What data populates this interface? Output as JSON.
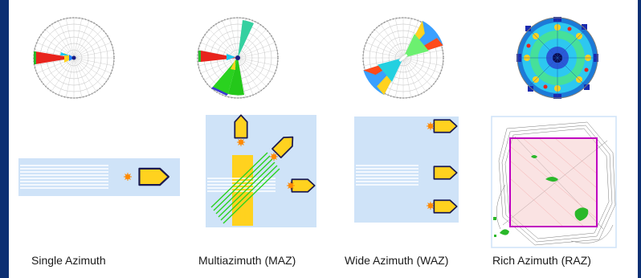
{
  "captions": {
    "single": "Single Azimuth",
    "multi": "Multiazimuth (MAZ)",
    "wide": "Wide Azimuth (WAZ)",
    "rich": "Rich Azimuth (RAZ)"
  },
  "colors": {
    "panel_bg": "#cfe3f8",
    "streamer": "#ffffff",
    "ship_fill": "#ffd21f",
    "ship_stroke": "#1a1a50",
    "source_burst": "#ff8a00",
    "frame": "#0b2f73",
    "rose_grid": "#b0b0b0",
    "raz_box": "#c000c0"
  },
  "icons": [
    "ship-icon",
    "source-burst-icon",
    "rose-diagram"
  ]
}
